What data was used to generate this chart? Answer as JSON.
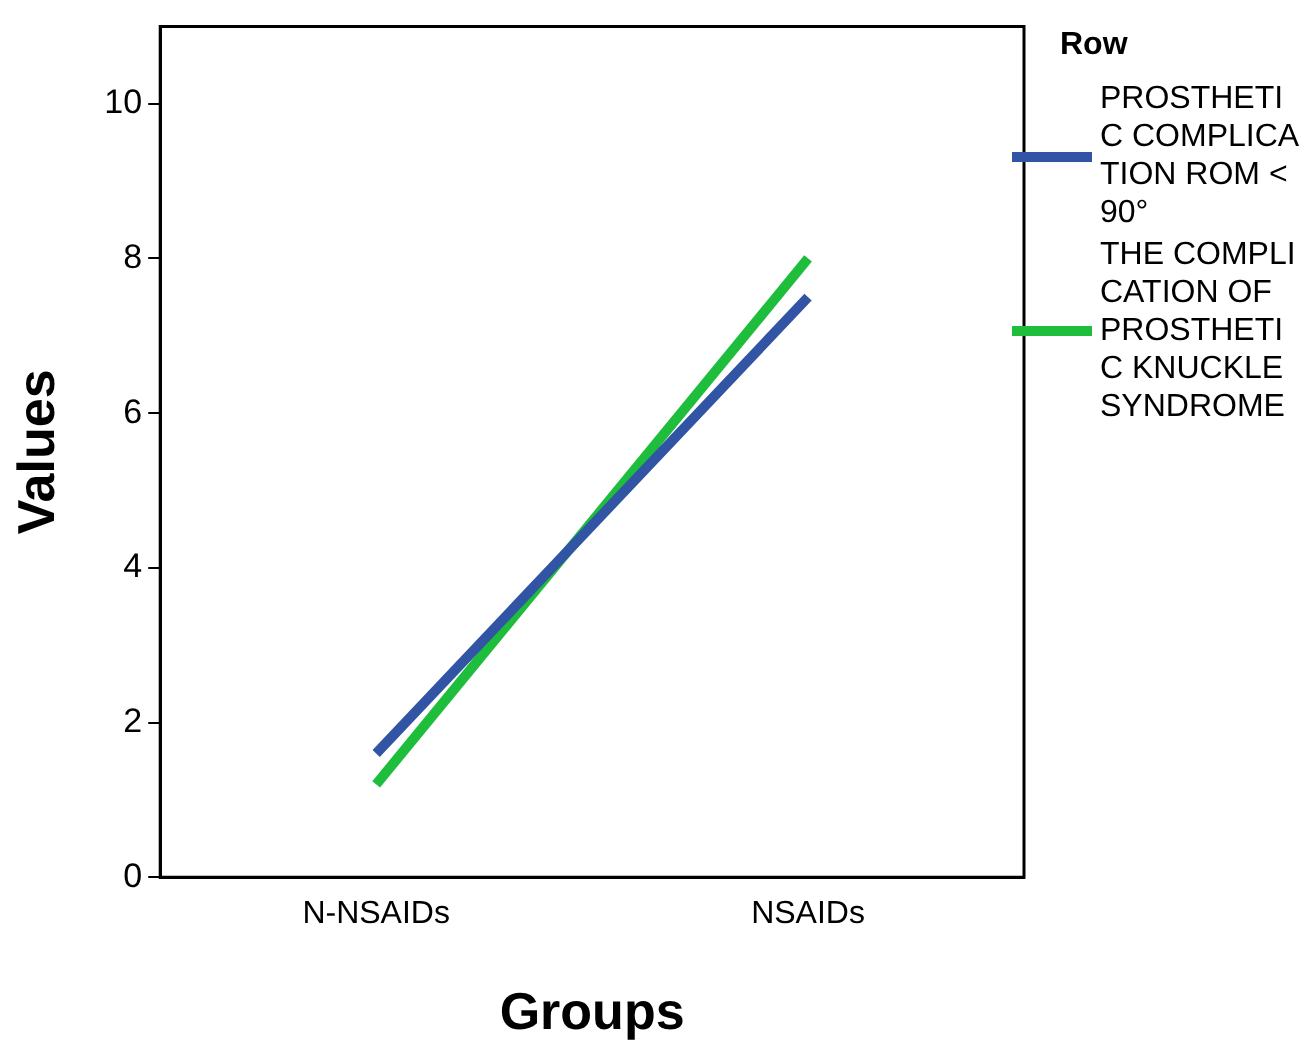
{
  "chart_data": {
    "type": "line",
    "xlabel": "Groups",
    "ylabel": "Values",
    "legend_title": "Row",
    "categories": [
      "N-NSAIDs",
      "NSAIDs"
    ],
    "series": [
      {
        "name": "PROSTHETIC COMPLICATION ROM <90°",
        "color": "#3154a4",
        "values": [
          1.6,
          7.5
        ]
      },
      {
        "name": "THE COMPLICATION OF PROSTHETIC KNUCKLE SYNDROME",
        "color": "#1ebe3c",
        "values": [
          1.2,
          8.0
        ]
      }
    ],
    "ylim": [
      0,
      11
    ],
    "yticks": [
      0,
      2,
      4,
      6,
      8,
      10
    ],
    "grid": false,
    "legend": "right",
    "marker": "none",
    "line_style": "solid"
  }
}
